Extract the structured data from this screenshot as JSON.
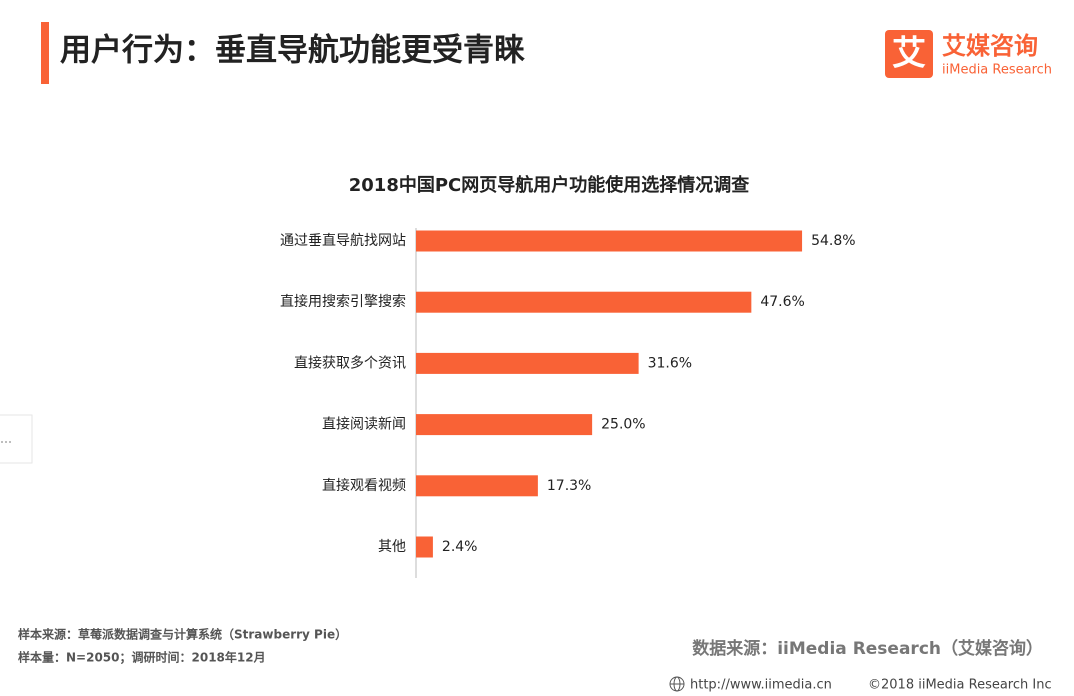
{
  "header": {
    "title": "用户行为：垂直导航功能更受青睐",
    "logo_mark": "艾",
    "logo_name": "艾媒咨询",
    "logo_sub": "iiMedia Research"
  },
  "chart_data": {
    "type": "bar",
    "orientation": "horizontal",
    "title": "2018中国PC网页导航用户功能使用选择情况调查",
    "categories": [
      "通过垂直导航找网站",
      "直接用搜索引擎搜索",
      "直接获取多个资讯",
      "直接阅读新闻",
      "直接观看视频",
      "其他"
    ],
    "values": [
      54.8,
      47.6,
      31.6,
      25.0,
      17.3,
      2.4
    ],
    "value_labels": [
      "54.8%",
      "47.6%",
      "31.6%",
      "25.0%",
      "17.3%",
      "2.4%"
    ],
    "color": "#f96236"
  },
  "footer": {
    "sample_source": "样本来源：草莓派数据调查与计算系统（Strawberry Pie）",
    "sample_size": "样本量：N=2050；调研时间：2018年12月",
    "data_source": "数据来源：iiMedia Research（艾媒咨询）",
    "url": "http://www.iimedia.cn",
    "copyright": "©2018  iiMedia Research  Inc"
  }
}
